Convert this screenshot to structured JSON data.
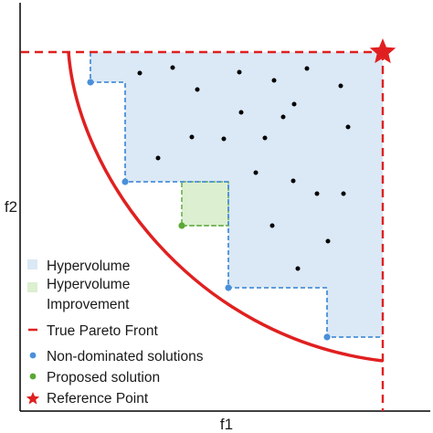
{
  "axes": {
    "x_label": "f1",
    "y_label": "f2"
  },
  "colors": {
    "hypervolume_fill": "#dbe8f5",
    "hypervolume_edge": "#4a90d9",
    "improvement_fill": "#dcefd0",
    "improvement_edge": "#6ab04c",
    "pareto_front": "#e02020",
    "reference": "#e02020",
    "nondominated": "#4a90d9",
    "proposed": "#5aa832",
    "dominated_points": "#000000"
  },
  "legend": {
    "hypervolume": "Hypervolume",
    "improvement_line1": "Hypervolume",
    "improvement_line2": "Improvement",
    "true_front": "True Pareto Front",
    "nondominated": "Non-dominated solutions",
    "proposed": "Proposed solution",
    "reference": "Reference Point"
  },
  "icons": {
    "reference_marker": "star-icon",
    "solution_marker": "dot-icon"
  }
}
